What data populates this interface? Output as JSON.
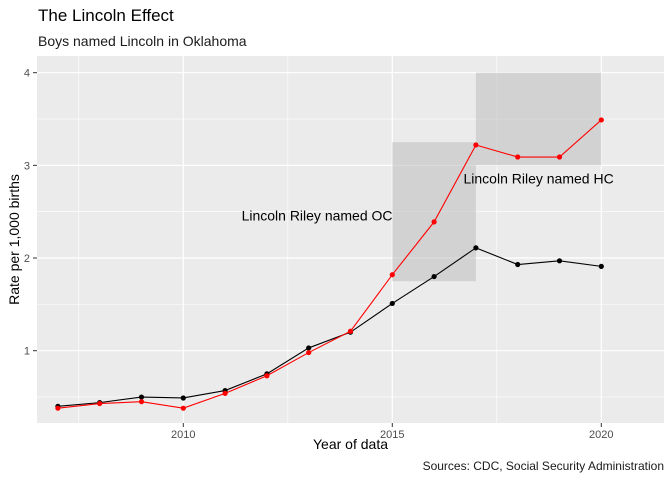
{
  "chart_data": {
    "type": "line",
    "title": "The Lincoln Effect",
    "subtitle": "Boys named Lincoln in Oklahoma",
    "caption": "Sources: CDC, Social Security Administration",
    "xlabel": "Year of data",
    "ylabel": "Rate per 1,000 births",
    "xlim": [
      2006.5,
      2021.5
    ],
    "ylim": [
      0.22,
      4.18
    ],
    "xticks": [
      2010,
      2015,
      2020
    ],
    "yticks": [
      1,
      2,
      3,
      4
    ],
    "grid": true,
    "legend": "none",
    "series": [
      {
        "color": "#000000",
        "x": [
          2007,
          2008,
          2009,
          2010,
          2011,
          2012,
          2013,
          2014,
          2015,
          2016,
          2017,
          2018,
          2019,
          2020
        ],
        "values": [
          0.4,
          0.44,
          0.5,
          0.49,
          0.57,
          0.75,
          1.03,
          1.2,
          1.51,
          1.8,
          2.11,
          1.93,
          1.97,
          1.91
        ]
      },
      {
        "color": "#ff0000",
        "x": [
          2007,
          2008,
          2009,
          2010,
          2011,
          2012,
          2013,
          2014,
          2015,
          2016,
          2017,
          2018,
          2019,
          2020
        ],
        "values": [
          0.38,
          0.43,
          0.45,
          0.38,
          0.54,
          0.73,
          0.98,
          1.21,
          1.82,
          2.39,
          3.22,
          3.09,
          3.09,
          3.49
        ]
      }
    ],
    "annotations": [
      {
        "text": "Lincoln Riley named OC",
        "x": 2013.2,
        "y": 2.46,
        "rect": {
          "x": [
            2015,
            2017
          ],
          "y": [
            1.75,
            3.25
          ]
        }
      },
      {
        "text": "Lincoln Riley named HC",
        "x": 2018.5,
        "y": 2.86,
        "rect": {
          "x": [
            2017,
            2020
          ],
          "y": [
            3.0,
            4.0
          ]
        }
      }
    ]
  }
}
